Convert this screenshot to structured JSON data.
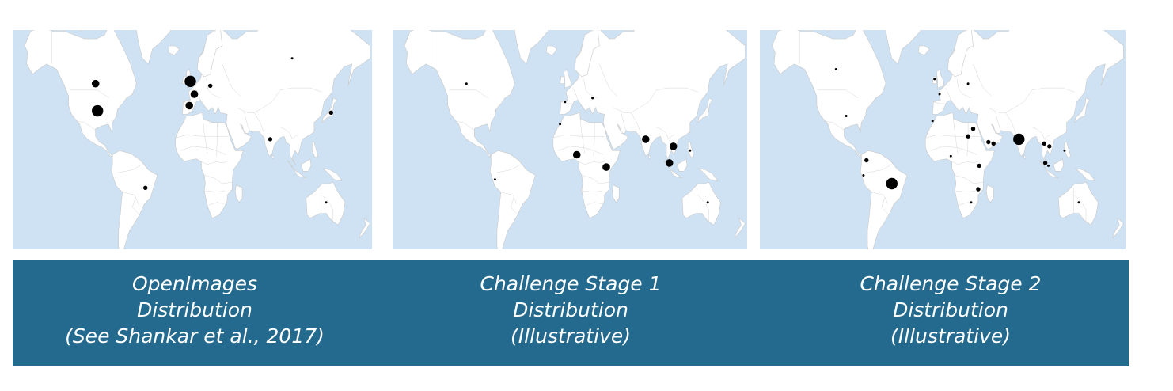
{
  "maps": [
    {
      "id": "openimages",
      "dots": [
        {
          "lon": -97,
          "lat": 52,
          "size": "medium"
        },
        {
          "lon": -95,
          "lat": 38,
          "size": "large"
        },
        {
          "lon": -2,
          "lat": 53,
          "size": "large"
        },
        {
          "lon": 2,
          "lat": 47,
          "size": "medium"
        },
        {
          "lon": -3,
          "lat": 41,
          "size": "medium"
        },
        {
          "lon": 18,
          "lat": 51,
          "size": "small"
        },
        {
          "lon": 100,
          "lat": 62,
          "size": "tiny"
        },
        {
          "lon": 139,
          "lat": 37,
          "size": "small"
        },
        {
          "lon": 78,
          "lat": 20,
          "size": "small"
        },
        {
          "lon": -47,
          "lat": -15,
          "size": "small"
        },
        {
          "lon": 134,
          "lat": -25,
          "size": "tiny"
        }
      ]
    },
    {
      "id": "stage1",
      "dots": [
        {
          "lon": -105,
          "lat": 52,
          "size": "tiny"
        },
        {
          "lon": -5,
          "lat": 43,
          "size": "tiny"
        },
        {
          "lon": 23,
          "lat": 45,
          "size": "tiny"
        },
        {
          "lon": -10,
          "lat": 30,
          "size": "tiny"
        },
        {
          "lon": 7,
          "lat": 9,
          "size": "medium"
        },
        {
          "lon": 37,
          "lat": 0,
          "size": "medium"
        },
        {
          "lon": 77,
          "lat": 20,
          "size": "medium"
        },
        {
          "lon": 105,
          "lat": 15,
          "size": "medium"
        },
        {
          "lon": 101,
          "lat": 3,
          "size": "medium"
        },
        {
          "lon": 122,
          "lat": 12,
          "size": "tiny"
        },
        {
          "lon": -76,
          "lat": -9,
          "size": "tiny"
        },
        {
          "lon": 140,
          "lat": -25,
          "size": "tiny"
        }
      ]
    },
    {
      "id": "stage2",
      "dots": [
        {
          "lon": -105,
          "lat": 58,
          "size": "tiny"
        },
        {
          "lon": -95,
          "lat": 35,
          "size": "tiny"
        },
        {
          "lon": -8,
          "lat": 54,
          "size": "tiny"
        },
        {
          "lon": 25,
          "lat": 52,
          "size": "tiny"
        },
        {
          "lon": -3,
          "lat": 47,
          "size": "tiny"
        },
        {
          "lon": -10,
          "lat": 32,
          "size": "tiny"
        },
        {
          "lon": 30,
          "lat": 27,
          "size": "small"
        },
        {
          "lon": 25,
          "lat": 22,
          "size": "small"
        },
        {
          "lon": 45,
          "lat": 18,
          "size": "small"
        },
        {
          "lon": 50,
          "lat": 17,
          "size": "small"
        },
        {
          "lon": 75,
          "lat": 20,
          "size": "large"
        },
        {
          "lon": 100,
          "lat": 17,
          "size": "small"
        },
        {
          "lon": 105,
          "lat": 15,
          "size": "small"
        },
        {
          "lon": 120,
          "lat": 12,
          "size": "tiny"
        },
        {
          "lon": 101,
          "lat": 3,
          "size": "small"
        },
        {
          "lon": 104,
          "lat": 1,
          "size": "tiny"
        },
        {
          "lon": 8,
          "lat": 8,
          "size": "tiny"
        },
        {
          "lon": 36,
          "lat": 1,
          "size": "small"
        },
        {
          "lon": 35,
          "lat": -16,
          "size": "small"
        },
        {
          "lon": 28,
          "lat": -25,
          "size": "tiny"
        },
        {
          "lon": -75,
          "lat": 5,
          "size": "small"
        },
        {
          "lon": -78,
          "lat": -6,
          "size": "tiny"
        },
        {
          "lon": -50,
          "lat": -12,
          "size": "large"
        },
        {
          "lon": 134,
          "lat": -25,
          "size": "tiny"
        }
      ]
    }
  ],
  "captions": [
    {
      "line1": "OpenImages",
      "line2": "Distribution",
      "line3": "(See Shankar et al., 2017)"
    },
    {
      "line1": "Challenge Stage 1",
      "line2": "Distribution",
      "line3": "(Illustrative)"
    },
    {
      "line1": "Challenge Stage 2",
      "line2": "Distribution",
      "line3": "(Illustrative)"
    }
  ],
  "colors": {
    "ocean": "#cfe2f3",
    "land": "#ffffff",
    "banner": "#236a8e",
    "dot": "#000000"
  }
}
